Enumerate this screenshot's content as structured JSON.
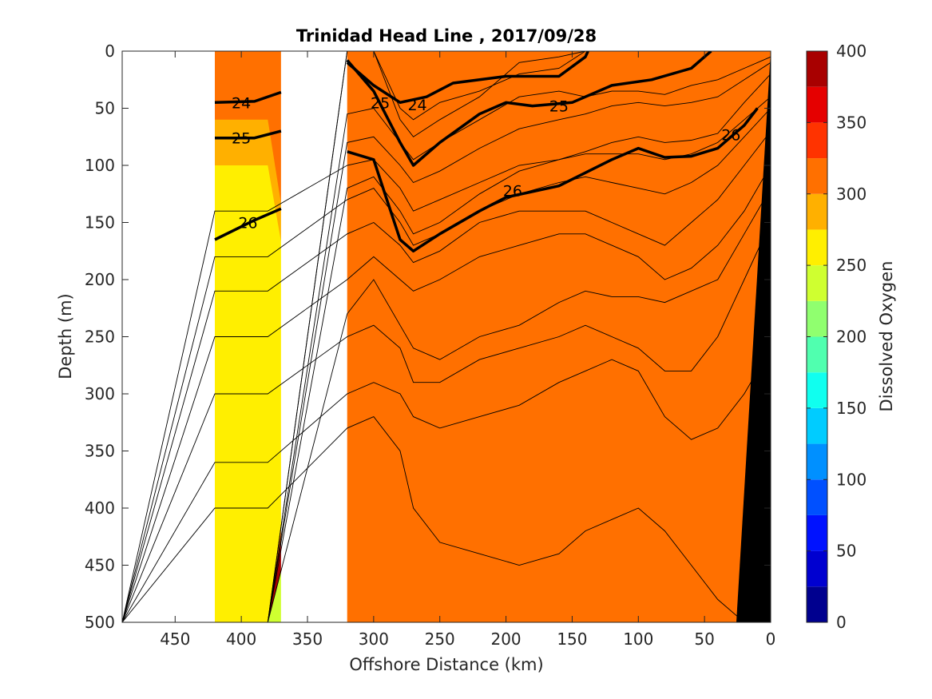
{
  "chart_data": {
    "type": "contour",
    "title": "Trinidad Head Line , 2017/09/28",
    "xlabel": "Offshore Distance (km)",
    "ylabel": "Depth (m)",
    "colorbar_label": "Dissolved Oxygen",
    "xlim": [
      490,
      0
    ],
    "ylim": [
      0,
      500
    ],
    "x_ticks": [
      450,
      400,
      350,
      300,
      250,
      200,
      150,
      100,
      50,
      0
    ],
    "y_ticks": [
      0,
      50,
      100,
      150,
      200,
      250,
      300,
      350,
      400,
      450,
      500
    ],
    "colorbar_ticks": [
      0,
      50,
      100,
      150,
      200,
      250,
      300,
      350,
      400
    ],
    "colorbar_levels": [
      0,
      25,
      50,
      75,
      100,
      125,
      150,
      175,
      200,
      225,
      250,
      275,
      300,
      325,
      350,
      375,
      400
    ],
    "colorbar_colors": [
      "#00008f",
      "#0000d0",
      "#0012ff",
      "#0050ff",
      "#0090ff",
      "#00ccff",
      "#10ffef",
      "#50ffaf",
      "#90ff6f",
      "#cfff30",
      "#ffef00",
      "#ffb000",
      "#ff7000",
      "#ff3300",
      "#e50000",
      "#a80000"
    ],
    "data_gaps_km": [
      [
        490,
        420
      ],
      [
        370,
        320
      ]
    ],
    "isopycnals": [
      {
        "label": "24",
        "points": [
          [
            420,
            45
          ],
          [
            390,
            44
          ],
          [
            370,
            36
          ]
        ]
      },
      {
        "label": "25",
        "points": [
          [
            420,
            76
          ],
          [
            390,
            76
          ],
          [
            370,
            70
          ]
        ]
      },
      {
        "label": "26",
        "points": [
          [
            420,
            165
          ],
          [
            390,
            148
          ],
          [
            370,
            138
          ]
        ]
      },
      {
        "label": "24",
        "points": [
          [
            320,
            10
          ],
          [
            300,
            30
          ],
          [
            280,
            45
          ],
          [
            260,
            40
          ],
          [
            240,
            28
          ],
          [
            200,
            22
          ],
          [
            160,
            22
          ],
          [
            140,
            5
          ],
          [
            138,
            0
          ]
        ]
      },
      {
        "label": "25",
        "points": [
          [
            320,
            8
          ],
          [
            300,
            35
          ],
          [
            280,
            80
          ],
          [
            270,
            100
          ],
          [
            250,
            80
          ],
          [
            220,
            55
          ],
          [
            200,
            45
          ],
          [
            180,
            48
          ],
          [
            150,
            45
          ],
          [
            120,
            30
          ],
          [
            90,
            25
          ],
          [
            60,
            15
          ],
          [
            45,
            0
          ]
        ]
      },
      {
        "label": "26",
        "points": [
          [
            320,
            88
          ],
          [
            300,
            95
          ],
          [
            290,
            130
          ],
          [
            280,
            165
          ],
          [
            270,
            175
          ],
          [
            250,
            160
          ],
          [
            220,
            140
          ],
          [
            200,
            128
          ],
          [
            160,
            118
          ],
          [
            120,
            95
          ],
          [
            100,
            85
          ],
          [
            80,
            93
          ],
          [
            60,
            92
          ],
          [
            40,
            85
          ],
          [
            20,
            65
          ],
          [
            10,
            50
          ]
        ]
      }
    ],
    "annotations": [
      {
        "text": "24",
        "x": 400,
        "y": 45
      },
      {
        "text": "25",
        "x": 400,
        "y": 76
      },
      {
        "text": "26",
        "x": 395,
        "y": 150
      },
      {
        "text": "24",
        "x": 267,
        "y": 47
      },
      {
        "text": "25",
        "x": 295,
        "y": 45
      },
      {
        "text": "25",
        "x": 160,
        "y": 48
      },
      {
        "text": "26",
        "x": 195,
        "y": 122
      },
      {
        "text": "26",
        "x": 30,
        "y": 73
      }
    ]
  }
}
